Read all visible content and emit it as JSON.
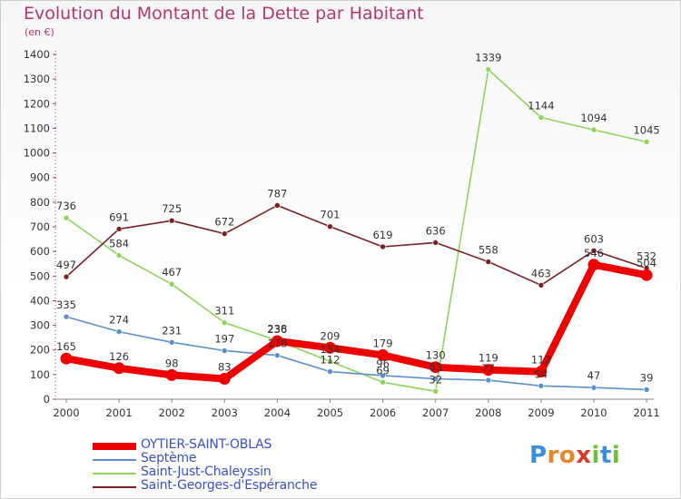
{
  "title": "Evolution du Montant de la Dette par Habitant",
  "subtitle": "(en €)",
  "logo": {
    "letters": [
      "P",
      "r",
      "o",
      "x",
      "i",
      "t",
      "i"
    ],
    "colors": [
      "#3a8fd8",
      "#e8862a",
      "#e8862a",
      "#d83a2a",
      "#6fbf3a",
      "#3a8fd8",
      "#6fbf3a"
    ]
  },
  "chart_data": {
    "type": "line",
    "categories": [
      "2000",
      "2001",
      "2002",
      "2003",
      "2004",
      "2005",
      "2006",
      "2007",
      "2008",
      "2009",
      "2010",
      "2011"
    ],
    "y_ticks": [
      "0",
      "100",
      "200",
      "300",
      "400",
      "500",
      "600",
      "700",
      "800",
      "900",
      "1000",
      "1100",
      "1200",
      "1300",
      "1400"
    ],
    "ylim": [
      0,
      1400
    ],
    "grid": false,
    "series": [
      {
        "name": "OYTIER-SAINT-OBLAS",
        "color": "#ee0000",
        "values": [
          165,
          126,
          98,
          83,
          236,
          209,
          179,
          130,
          119,
          112,
          546,
          504
        ]
      },
      {
        "name": "Septème",
        "color": "#5b8fc8",
        "values": [
          335,
          274,
          231,
          197,
          178,
          112,
          96,
          83,
          77,
          54,
          47,
          39
        ]
      },
      {
        "name": "Saint-Just-Chaleyssin",
        "color": "#8fd45a",
        "values": [
          736,
          584,
          467,
          311,
          238,
          154,
          69,
          32,
          1339,
          1144,
          1094,
          1045
        ]
      },
      {
        "name": "Saint-Georges-d'Espéranche",
        "color": "#7a1f24",
        "values": [
          497,
          691,
          725,
          672,
          787,
          701,
          619,
          636,
          558,
          463,
          603,
          532
        ]
      }
    ]
  }
}
